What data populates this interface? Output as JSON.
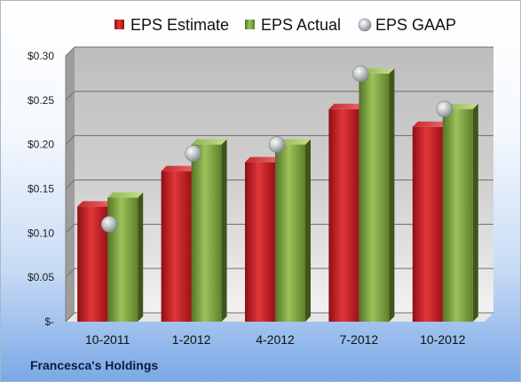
{
  "chart_data": {
    "type": "bar",
    "categories": [
      "10-2011",
      "1-2012",
      "4-2012",
      "7-2012",
      "10-2012"
    ],
    "series": [
      {
        "name": "EPS Estimate",
        "kind": "bar",
        "color": "#cc1f26",
        "values": [
          0.13,
          0.17,
          0.18,
          0.24,
          0.22
        ]
      },
      {
        "name": "EPS Actual",
        "kind": "bar",
        "color": "#7fa43a",
        "values": [
          0.14,
          0.2,
          0.2,
          0.28,
          0.24
        ]
      },
      {
        "name": "EPS GAAP",
        "kind": "marker",
        "color": "#b8bcc2",
        "values": [
          0.11,
          0.19,
          0.2,
          0.28,
          0.24
        ]
      }
    ],
    "ylim": [
      0,
      0.3
    ],
    "yticks": [
      0,
      0.05,
      0.1,
      0.15,
      0.2,
      0.25,
      0.3
    ],
    "ytick_labels": [
      "$-",
      "$0.05",
      "$0.10",
      "$0.15",
      "$0.20",
      "$0.25",
      "$0.30"
    ],
    "legend_position": "top",
    "grid": true
  },
  "footer": {
    "company": "Francesca's Holdings"
  }
}
